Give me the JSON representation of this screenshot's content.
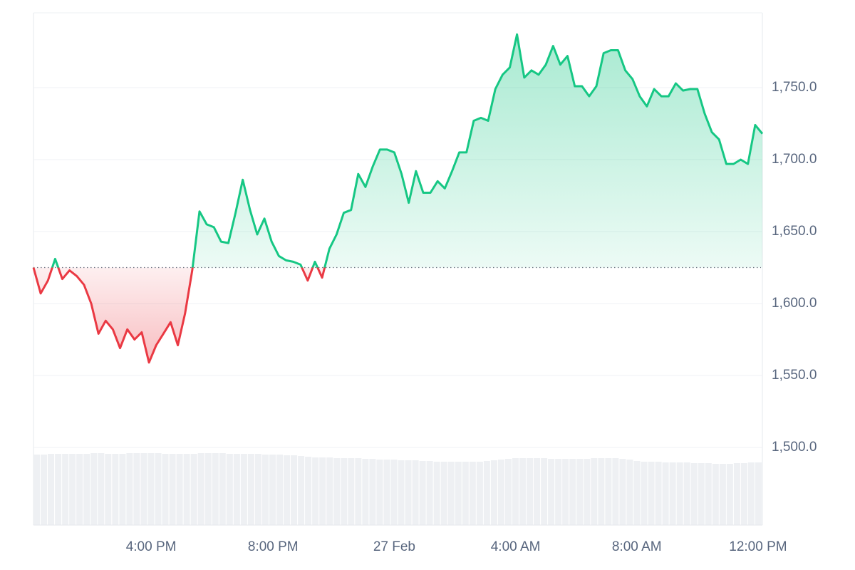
{
  "chart_data": {
    "type": "line",
    "values": [
      1625,
      1607,
      1616,
      1631,
      1617,
      1623,
      1619,
      1613,
      1600,
      1579,
      1588,
      1582,
      1569,
      1582,
      1575,
      1580,
      1559,
      1571,
      1579,
      1587,
      1571,
      1593,
      1623,
      1664,
      1655,
      1653,
      1643,
      1642,
      1663,
      1686,
      1665,
      1648,
      1659,
      1643,
      1633,
      1630,
      1629,
      1627,
      1616,
      1629,
      1618,
      1638,
      1648,
      1663,
      1665,
      1690,
      1681,
      1695,
      1707,
      1707,
      1705,
      1690,
      1670,
      1692,
      1677,
      1677,
      1685,
      1680,
      1692,
      1705,
      1705,
      1727,
      1729,
      1727,
      1749,
      1759,
      1764,
      1787,
      1757,
      1762,
      1759,
      1766,
      1779,
      1766,
      1772,
      1751,
      1751,
      1744,
      1751,
      1774,
      1776,
      1776,
      1762,
      1756,
      1744,
      1737,
      1749,
      1744,
      1744,
      1753,
      1748,
      1749,
      1749,
      1732,
      1719,
      1714,
      1697,
      1697,
      1700,
      1697,
      1724,
      1718
    ],
    "volume": [
      99,
      99,
      100,
      100,
      100,
      100,
      100,
      100,
      101,
      101,
      100,
      100,
      100,
      101,
      101,
      101,
      101,
      101,
      100,
      100,
      100,
      100,
      100,
      101,
      101,
      101,
      101,
      100,
      100,
      100,
      100,
      100,
      99,
      99,
      99,
      98,
      98,
      97,
      96,
      95,
      95,
      95,
      94,
      94,
      94,
      94,
      93,
      93,
      92,
      92,
      92,
      91,
      91,
      91,
      90,
      90,
      89,
      89,
      89,
      89,
      89,
      89,
      89,
      90,
      91,
      92,
      93,
      94,
      94,
      94,
      94,
      94,
      93,
      93,
      93,
      93,
      93,
      93,
      94,
      94,
      94,
      94,
      93,
      92,
      90,
      89,
      89,
      89,
      88,
      88,
      88,
      88,
      87,
      87,
      87,
      86,
      86,
      86,
      87,
      87,
      88,
      88
    ],
    "up_color": "#16c784",
    "down_color": "#ea3943",
    "volume_color": "#eef0f3",
    "xlim": [
      0,
      101
    ],
    "xticks": [
      {
        "value": 16.3,
        "label": "4:00 PM"
      },
      {
        "value": 33.2,
        "label": "8:00 PM"
      },
      {
        "value": 50.0,
        "label": "27 Feb"
      },
      {
        "value": 66.8,
        "label": "4:00 AM"
      },
      {
        "value": 83.6,
        "label": "8:00 AM"
      },
      {
        "value": 100.4,
        "label": "12:00 PM"
      }
    ],
    "ylim": [
      1446,
      1802
    ],
    "yticks": [
      {
        "value": 1500,
        "label": "1,500.0"
      },
      {
        "value": 1550,
        "label": "1,550.0"
      },
      {
        "value": 1600,
        "label": "1,600.0"
      },
      {
        "value": 1650,
        "label": "1,650.0"
      },
      {
        "value": 1700,
        "label": "1,700.0"
      },
      {
        "value": 1750,
        "label": "1,750.0"
      }
    ],
    "grid": true
  }
}
